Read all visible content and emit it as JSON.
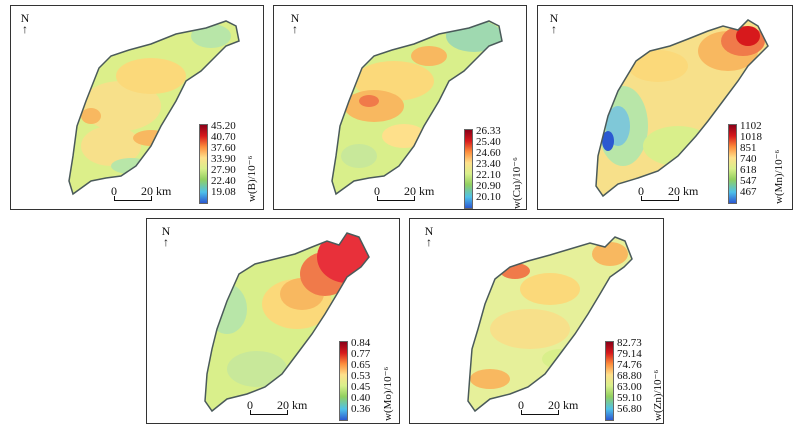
{
  "maps": [
    {
      "north": "N",
      "scale": {
        "start": "0",
        "end": "20 km"
      },
      "legend": {
        "values": [
          "45.20",
          "40.70",
          "37.60",
          "33.90",
          "27.90",
          "22.40",
          "19.08"
        ],
        "unit": "w(B)/10⁻⁶"
      }
    },
    {
      "north": "N",
      "scale": {
        "start": "0",
        "end": "20 km"
      },
      "legend": {
        "values": [
          "26.33",
          "25.40",
          "24.60",
          "23.40",
          "22.10",
          "20.90",
          "20.10"
        ],
        "unit": "w(Cu)/10⁻⁶"
      }
    },
    {
      "north": "N",
      "scale": {
        "start": "0",
        "end": "20 km"
      },
      "legend": {
        "values": [
          "1102",
          "1018",
          "851",
          "740",
          "618",
          "547",
          "467"
        ],
        "unit": "w(Mn)/10⁻⁶"
      }
    },
    {
      "north": "N",
      "scale": {
        "start": "0",
        "end": "20 km"
      },
      "legend": {
        "values": [
          "0.84",
          "0.77",
          "0.65",
          "0.53",
          "0.45",
          "0.40",
          "0.36"
        ],
        "unit": "w(Mo)/10⁻⁶"
      }
    },
    {
      "north": "N",
      "scale": {
        "start": "0",
        "end": "20 km"
      },
      "legend": {
        "values": [
          "82.73",
          "79.14",
          "74.76",
          "68.80",
          "63.00",
          "59.10",
          "56.80"
        ],
        "unit": "w(Zn)/10⁻⁶"
      }
    }
  ],
  "colors": {
    "ramp": [
      "#8b0018",
      "#d7191c",
      "#fd8d3c",
      "#fee08b",
      "#d9ef8b",
      "#91cf60",
      "#4fc1e9",
      "#2b59d1"
    ],
    "outline": "#4a5a5a"
  }
}
